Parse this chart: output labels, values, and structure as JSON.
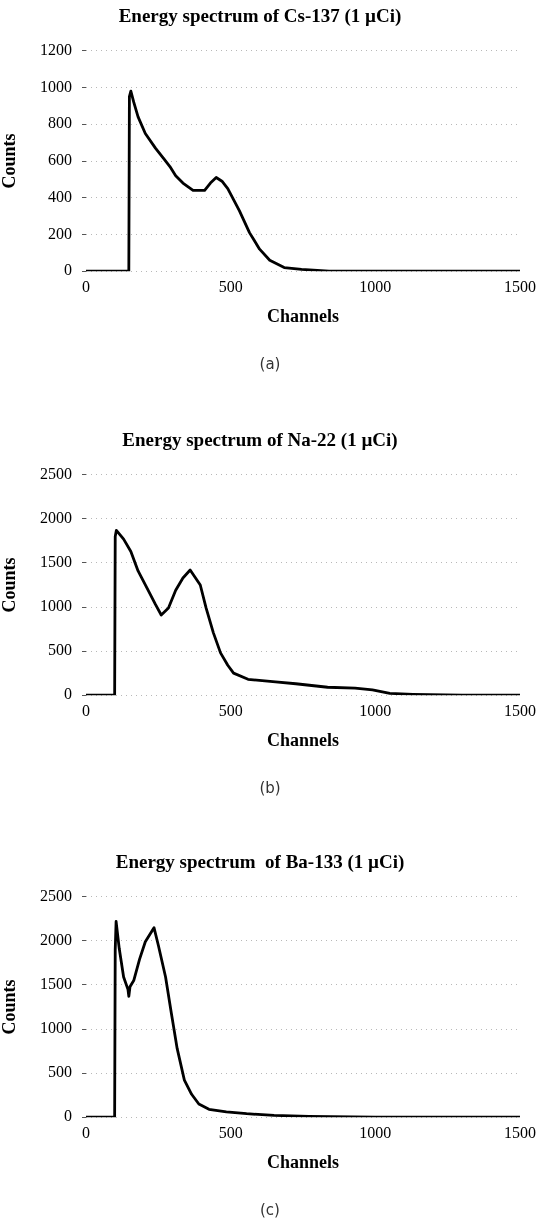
{
  "chart_data": [
    {
      "type": "line",
      "title": "Energy spectrum of Cs-137 (1 µCi)",
      "xlabel": "Channels",
      "ylabel": "Counts",
      "color": "#000000",
      "marker": "none",
      "grid": "y",
      "annotations": [
        "(a)"
      ],
      "x": [
        0,
        148,
        150,
        155,
        165,
        180,
        205,
        240,
        270,
        290,
        310,
        335,
        370,
        410,
        430,
        450,
        470,
        490,
        530,
        565,
        600,
        635,
        685,
        745,
        840,
        1000,
        1500
      ],
      "values": [
        0,
        0,
        950,
        980,
        920,
        840,
        750,
        670,
        610,
        570,
        520,
        480,
        440,
        440,
        480,
        510,
        490,
        450,
        330,
        210,
        120,
        60,
        20,
        10,
        0,
        0,
        0
      ],
      "xlim": [
        0,
        1500
      ],
      "xticks": [
        0,
        500,
        1000,
        1500
      ],
      "ylim": [
        0,
        1200
      ],
      "yticks": [
        0,
        200,
        400,
        600,
        800,
        1000,
        1200
      ]
    },
    {
      "type": "line",
      "title": "Energy spectrum of Na-22 (1 µCi)",
      "xlabel": "Channels",
      "ylabel": "Counts",
      "color": "#000000",
      "marker": "none",
      "grid": "y",
      "annotations": [
        "(b)"
      ],
      "x": [
        0,
        99,
        101,
        105,
        130,
        155,
        180,
        215,
        240,
        260,
        285,
        310,
        335,
        360,
        395,
        415,
        440,
        465,
        490,
        510,
        560,
        655,
        725,
        835,
        930,
        990,
        1050,
        1130,
        1300,
        1500
      ],
      "values": [
        0,
        0,
        1800,
        1870,
        1770,
        1630,
        1410,
        1190,
        1030,
        910,
        990,
        1190,
        1330,
        1420,
        1250,
        990,
        710,
        480,
        340,
        250,
        180,
        150,
        130,
        90,
        80,
        60,
        20,
        10,
        0,
        0
      ],
      "xlim": [
        0,
        1500
      ],
      "xticks": [
        0,
        500,
        1000,
        1500
      ],
      "ylim": [
        0,
        2500
      ],
      "yticks": [
        0,
        500,
        1000,
        1500,
        2000,
        2500
      ]
    },
    {
      "type": "line",
      "title": "Energy spectrum  of Ba-133 (1 µCi)",
      "xlabel": "Channels",
      "ylabel": "Counts",
      "color": "#000000",
      "marker": "none",
      "grid": "y",
      "annotations": [
        "(c)"
      ],
      "x": [
        0,
        99,
        101,
        104,
        115,
        130,
        145,
        148,
        152,
        165,
        185,
        205,
        220,
        235,
        250,
        275,
        295,
        315,
        340,
        365,
        390,
        425,
        485,
        555,
        650,
        770,
        1000,
        1500
      ],
      "values": [
        0,
        0,
        1900,
        2220,
        1910,
        1590,
        1450,
        1370,
        1480,
        1550,
        1790,
        1990,
        2070,
        2150,
        1950,
        1590,
        1180,
        780,
        420,
        260,
        150,
        90,
        60,
        40,
        20,
        10,
        0,
        0
      ],
      "xlim": [
        0,
        1500
      ],
      "xticks": [
        0,
        500,
        1000,
        1500
      ],
      "ylim": [
        0,
        2500
      ],
      "yticks": [
        0,
        500,
        1000,
        1500,
        2000,
        2500
      ]
    }
  ]
}
